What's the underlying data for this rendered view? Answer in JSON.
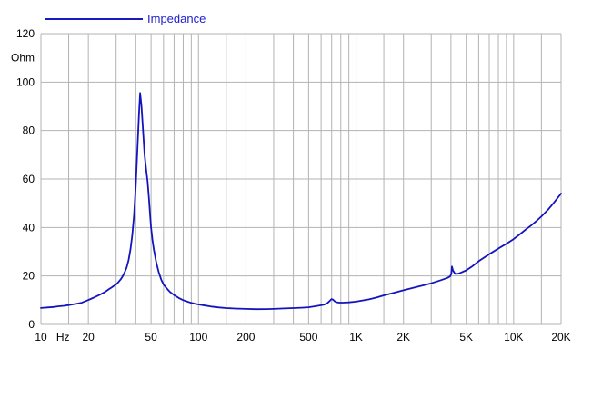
{
  "chart_data": {
    "type": "line",
    "title": "",
    "legend": "Impedance",
    "xlabel": "Hz",
    "ylabel": "Ohm",
    "x_scale": "log",
    "xlim": [
      10,
      20000
    ],
    "ylim": [
      0,
      120
    ],
    "grid": true,
    "legend_position": "top-left",
    "grid_color": "#b3b3b3",
    "line_color": "#1414be",
    "text_color": "#000000",
    "background": "#ffffff",
    "y_ticks": [
      0,
      20,
      40,
      60,
      80,
      100,
      120
    ],
    "x_gridlines": [
      10,
      15,
      20,
      30,
      40,
      50,
      60,
      70,
      80,
      90,
      100,
      150,
      200,
      300,
      400,
      500,
      600,
      700,
      800,
      900,
      1000,
      1500,
      2000,
      3000,
      4000,
      5000,
      6000,
      7000,
      8000,
      9000,
      10000,
      15000,
      20000
    ],
    "x_tick_labels": [
      {
        "f": 10,
        "label": "10"
      },
      {
        "f": 20,
        "label": "20"
      },
      {
        "f": 50,
        "label": "50"
      },
      {
        "f": 100,
        "label": "100"
      },
      {
        "f": 200,
        "label": "200"
      },
      {
        "f": 500,
        "label": "500"
      },
      {
        "f": 1000,
        "label": "1K"
      },
      {
        "f": 2000,
        "label": "2K"
      },
      {
        "f": 5000,
        "label": "5K"
      },
      {
        "f": 10000,
        "label": "10K"
      },
      {
        "f": 20000,
        "label": "20K"
      }
    ],
    "x_unit_label": {
      "f": 13.8,
      "label": "Hz"
    },
    "series": [
      {
        "name": "Impedance",
        "color": "#1414be",
        "points": [
          [
            10,
            6.8
          ],
          [
            11,
            7.0
          ],
          [
            12,
            7.2
          ],
          [
            13,
            7.5
          ],
          [
            14,
            7.7
          ],
          [
            15,
            8.0
          ],
          [
            16,
            8.3
          ],
          [
            17,
            8.6
          ],
          [
            18,
            8.9
          ],
          [
            19,
            9.5
          ],
          [
            20,
            10.1
          ],
          [
            21,
            10.7
          ],
          [
            22,
            11.3
          ],
          [
            23,
            11.9
          ],
          [
            24,
            12.5
          ],
          [
            25,
            13.1
          ],
          [
            26,
            13.8
          ],
          [
            27,
            14.5
          ],
          [
            28,
            15.2
          ],
          [
            29,
            15.9
          ],
          [
            30,
            16.5
          ],
          [
            31,
            17.4
          ],
          [
            32,
            18.5
          ],
          [
            33,
            19.8
          ],
          [
            34,
            21.5
          ],
          [
            35,
            23.5
          ],
          [
            36,
            26.5
          ],
          [
            37,
            31
          ],
          [
            38,
            37
          ],
          [
            39,
            45
          ],
          [
            40,
            57
          ],
          [
            41,
            73
          ],
          [
            42,
            88
          ],
          [
            42.6,
            95.5
          ],
          [
            43.5,
            90
          ],
          [
            44.5,
            80
          ],
          [
            45.5,
            70
          ],
          [
            46.5,
            64
          ],
          [
            47.5,
            59
          ],
          [
            48.5,
            52
          ],
          [
            49.2,
            46
          ],
          [
            50,
            40
          ],
          [
            51,
            35
          ],
          [
            52,
            31
          ],
          [
            54,
            25.5
          ],
          [
            56,
            21.5
          ],
          [
            58,
            18.5
          ],
          [
            60,
            16.5
          ],
          [
            63,
            14.8
          ],
          [
            66,
            13.4
          ],
          [
            70,
            12.1
          ],
          [
            75,
            10.9
          ],
          [
            80,
            10.0
          ],
          [
            85,
            9.4
          ],
          [
            90,
            8.9
          ],
          [
            95,
            8.5
          ],
          [
            100,
            8.25
          ],
          [
            110,
            7.8
          ],
          [
            120,
            7.4
          ],
          [
            135,
            7.0
          ],
          [
            150,
            6.75
          ],
          [
            170,
            6.55
          ],
          [
            200,
            6.4
          ],
          [
            230,
            6.3
          ],
          [
            270,
            6.35
          ],
          [
            300,
            6.4
          ],
          [
            350,
            6.6
          ],
          [
            400,
            6.75
          ],
          [
            450,
            6.9
          ],
          [
            500,
            7.1
          ],
          [
            550,
            7.5
          ],
          [
            600,
            7.9
          ],
          [
            630,
            8.2
          ],
          [
            660,
            8.9
          ],
          [
            685,
            9.9
          ],
          [
            700,
            10.5
          ],
          [
            715,
            10.2
          ],
          [
            730,
            9.6
          ],
          [
            750,
            9.2
          ],
          [
            780,
            9.0
          ],
          [
            830,
            9.0
          ],
          [
            900,
            9.1
          ],
          [
            1000,
            9.4
          ],
          [
            1100,
            9.9
          ],
          [
            1200,
            10.3
          ],
          [
            1350,
            11.1
          ],
          [
            1500,
            12.0
          ],
          [
            1700,
            12.9
          ],
          [
            2000,
            14.1
          ],
          [
            2300,
            15.1
          ],
          [
            2700,
            16.2
          ],
          [
            3000,
            17.0
          ],
          [
            3400,
            18.1
          ],
          [
            3800,
            19.2
          ],
          [
            3950,
            19.8
          ],
          [
            4020,
            20.8
          ],
          [
            4060,
            23.9
          ],
          [
            4120,
            22.3
          ],
          [
            4250,
            20.9
          ],
          [
            4400,
            20.9
          ],
          [
            4600,
            21.3
          ],
          [
            5000,
            22.3
          ],
          [
            5500,
            24.1
          ],
          [
            6000,
            26.1
          ],
          [
            6600,
            27.9
          ],
          [
            7000,
            29.0
          ],
          [
            8000,
            31.3
          ],
          [
            9000,
            33.3
          ],
          [
            10000,
            35.2
          ],
          [
            11000,
            37.3
          ],
          [
            12000,
            39.3
          ],
          [
            13000,
            41.0
          ],
          [
            14000,
            42.8
          ],
          [
            15000,
            44.6
          ],
          [
            16500,
            47.3
          ],
          [
            18000,
            50.2
          ],
          [
            20000,
            54.0
          ]
        ]
      }
    ]
  }
}
